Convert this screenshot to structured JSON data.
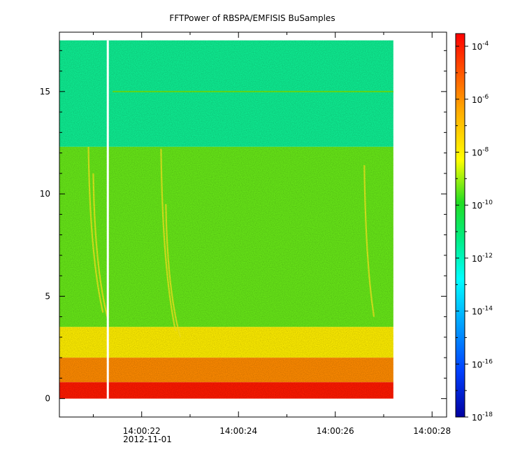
{
  "chart_data": {
    "type": "heatmap",
    "title": "FFTPower of RBSPA/EMFISIS  BuSamples",
    "x_tick_labels": [
      "14:00:22",
      "14:00:24",
      "14:00:26",
      "14:00:28"
    ],
    "x_date_label": "2012-11-01",
    "x_range_seconds": [
      "14:00:20.3",
      "14:00:28.3"
    ],
    "data_x_end": "14:00:27.2",
    "gap_at": "14:00:21.3",
    "y_ticks": [
      0,
      5,
      10,
      15
    ],
    "ylim": [
      -0.9,
      17.9
    ],
    "data_y_max": 17.5,
    "colorbar": {
      "scale": "log",
      "range": [
        1e-18,
        0.0003
      ],
      "tick_labels": [
        {
          "base": "10",
          "exp": "-4",
          "value": 0.0001
        },
        {
          "base": "10",
          "exp": "-6",
          "value": 1e-06
        },
        {
          "base": "10",
          "exp": "-8",
          "value": 1e-08
        },
        {
          "base": "10",
          "exp": "-10",
          "value": 1e-10
        },
        {
          "base": "10",
          "exp": "-12",
          "value": 1e-12
        },
        {
          "base": "10",
          "exp": "-14",
          "value": 1e-14
        },
        {
          "base": "10",
          "exp": "-16",
          "value": 1e-16
        },
        {
          "base": "10",
          "exp": "-18",
          "value": 1e-18
        }
      ],
      "colors": [
        "#0000a0",
        "#0040ff",
        "#00ffff",
        "#22dd22",
        "#ffff00",
        "#ff8800",
        "#ff0000"
      ]
    },
    "bands": [
      {
        "y_from": 12.3,
        "y_to": 17.5,
        "power": 1e-12
      },
      {
        "y_from": 3.5,
        "y_to": 12.3,
        "power": 1e-10
      },
      {
        "y_from": 2.0,
        "y_to": 3.5,
        "power": 1e-08
      },
      {
        "y_from": 0.8,
        "y_to": 2.0,
        "power": 1e-06
      },
      {
        "y_from": 0.0,
        "y_to": 0.8,
        "power": 0.0001
      }
    ],
    "line_feature": {
      "y": 15.0,
      "power": 1e-10
    },
    "bursts": [
      {
        "t_top": "14:00:20.9",
        "y_top": 12.3,
        "t_bottom": "14:00:21.2",
        "y_bottom": 4.2
      },
      {
        "t_top": "14:00:21.0",
        "y_top": 11.0,
        "t_bottom": "14:00:21.3",
        "y_bottom": 3.9
      },
      {
        "t_top": "14:00:22.4",
        "y_top": 12.2,
        "t_bottom": "14:00:22.7",
        "y_bottom": 3.3
      },
      {
        "t_top": "14:00:22.5",
        "y_top": 9.5,
        "t_bottom": "14:00:22.8",
        "y_bottom": 3.0
      },
      {
        "t_top": "14:00:26.6",
        "y_top": 11.4,
        "t_bottom": "14:00:26.8",
        "y_bottom": 4.0
      }
    ]
  }
}
